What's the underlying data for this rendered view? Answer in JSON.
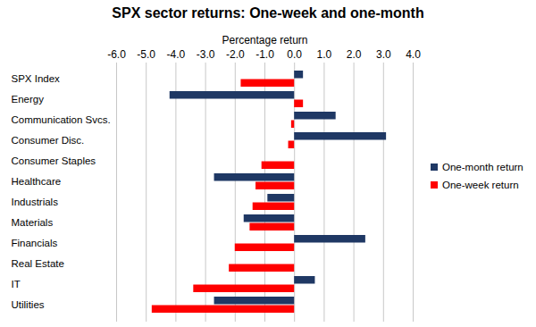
{
  "chart_data": {
    "type": "bar",
    "orientation": "horizontal",
    "title": "SPX sector returns: One-week and one-month",
    "x_label": "Percentage return",
    "categories": [
      "SPX Index",
      "Energy",
      "Communication Svcs.",
      "Consumer Disc.",
      "Consumer Staples",
      "Healthcare",
      "Industrials",
      "Materials",
      "Financials",
      "Real Estate",
      "IT",
      "Utilities"
    ],
    "series": [
      {
        "name": "One-month return",
        "color": "#1f3864",
        "values": [
          0.3,
          -4.2,
          1.4,
          3.1,
          0.0,
          -2.7,
          -0.9,
          -1.7,
          2.4,
          0.0,
          0.7,
          -2.7
        ]
      },
      {
        "name": "One-week return",
        "color": "#ff0000",
        "values": [
          -1.8,
          0.3,
          -0.1,
          -0.2,
          -1.1,
          -1.3,
          -1.4,
          -1.5,
          -2.0,
          -2.2,
          -3.4,
          -4.8
        ]
      }
    ],
    "xlim": [
      -6,
      4
    ],
    "xticks": [
      {
        "value": -6,
        "label": "-6.0"
      },
      {
        "value": -5,
        "label": "-5.0"
      },
      {
        "value": -4,
        "label": "-4.0"
      },
      {
        "value": -3,
        "label": "-3.0"
      },
      {
        "value": -2,
        "label": "-2.0"
      },
      {
        "value": -1,
        "label": "-1.0"
      },
      {
        "value": 0,
        "label": "0.0"
      },
      {
        "value": 1,
        "label": "1.0"
      },
      {
        "value": 2,
        "label": "2.0"
      },
      {
        "value": 3,
        "label": "3.0"
      },
      {
        "value": 4,
        "label": "4.0"
      }
    ],
    "grid": true,
    "legend": "right"
  }
}
